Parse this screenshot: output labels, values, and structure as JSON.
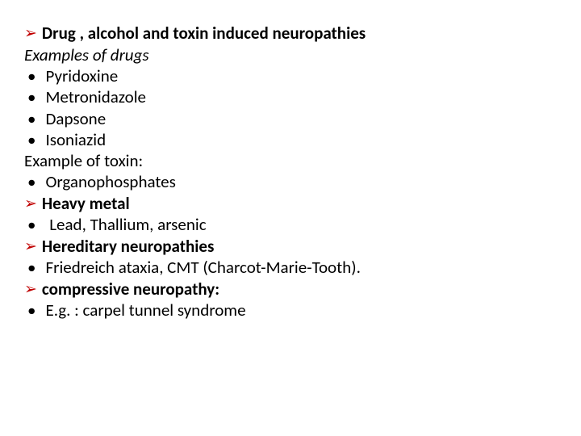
{
  "lines": [
    {
      "marker": "arrow",
      "bold": true,
      "italic": false,
      "text": "Drug , alcohol and toxin induced neuropathies"
    },
    {
      "marker": "none",
      "bold": false,
      "italic": true,
      "text": "Examples of drugs"
    },
    {
      "marker": "dot",
      "bold": false,
      "italic": false,
      "text": "Pyridoxine"
    },
    {
      "marker": "dot",
      "bold": false,
      "italic": false,
      "text": "Metronidazole"
    },
    {
      "marker": "dot",
      "bold": false,
      "italic": false,
      "text": "Dapsone"
    },
    {
      "marker": "dot",
      "bold": false,
      "italic": false,
      "text": "Isoniazid"
    },
    {
      "marker": "none",
      "bold": false,
      "italic": false,
      "text": "Example of toxin:"
    },
    {
      "marker": "dot",
      "bold": false,
      "italic": false,
      "text": "Organophosphates"
    },
    {
      "marker": "arrow",
      "bold": true,
      "italic": false,
      "text": "Heavy metal"
    },
    {
      "marker": "dot",
      "bold": false,
      "italic": false,
      "text": " Lead, Thallium, arsenic"
    },
    {
      "marker": "arrow",
      "bold": true,
      "italic": false,
      "text": "Hereditary neuropathies"
    },
    {
      "marker": "dot",
      "bold": false,
      "italic": false,
      "text": "Friedreich ataxia, CMT (Charcot-Marie-Tooth)."
    },
    {
      "marker": "arrow",
      "bold": true,
      "italic": false,
      "text": "compressive neuropathy:"
    },
    {
      "marker": "dot",
      "bold": false,
      "italic": false,
      "text": "E.g. : carpel tunnel syndrome"
    }
  ],
  "colors": {
    "arrow": "#c00000",
    "text": "#000000",
    "background": "#ffffff"
  },
  "glyphs": {
    "arrow": "➢",
    "dot": "•"
  }
}
